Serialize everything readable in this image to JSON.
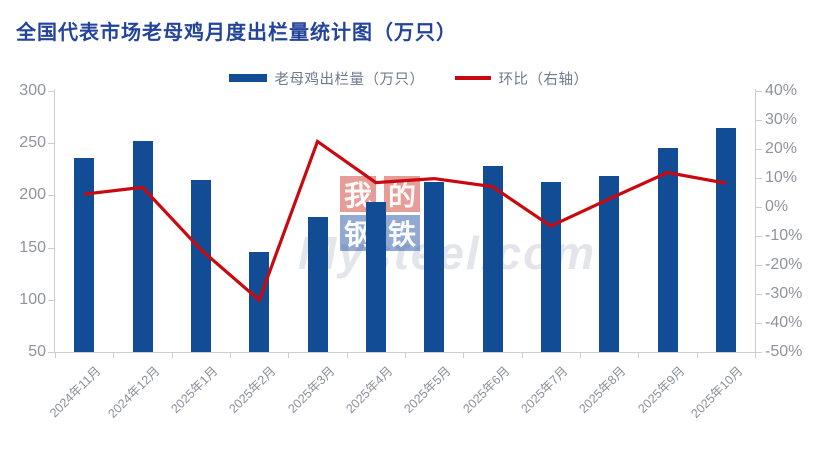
{
  "chart_data": {
    "type": "bar+line",
    "title": "全国代表市场老母鸡月度出栏量统计图（万只）",
    "categories": [
      "2024年11月",
      "2024年12月",
      "2025年1月",
      "2025年2月",
      "2025年3月",
      "2025年4月",
      "2025年5月",
      "2025年6月",
      "2025年7月",
      "2025年8月",
      "2025年9月",
      "2025年10月"
    ],
    "series": [
      {
        "name": "老母鸡出栏量（万只）",
        "type": "bar",
        "axis": "left",
        "color": "#114C95",
        "values": [
          236,
          252,
          215,
          146,
          179,
          194,
          213,
          228,
          213,
          219,
          245,
          265
        ]
      },
      {
        "name": "环比（右轴）",
        "type": "line",
        "axis": "right",
        "color": "#C9080F",
        "unit": "%",
        "values": [
          4.4,
          6.8,
          -14.7,
          -32.1,
          22.6,
          8.4,
          9.8,
          7.0,
          -6.6,
          2.8,
          11.9,
          8.2
        ]
      }
    ],
    "left_axis": {
      "min": 50,
      "max": 300,
      "step": 50,
      "tick_labels": [
        "300",
        "250",
        "200",
        "150",
        "100",
        "50"
      ]
    },
    "right_axis": {
      "min": -50,
      "max": 40,
      "step": 10,
      "tick_labels": [
        "40%",
        "30%",
        "20%",
        "10%",
        "0%",
        "-10%",
        "-20%",
        "-30%",
        "-40%",
        "-50%"
      ]
    },
    "legend_position": "top-center",
    "grid": false
  },
  "watermark": {
    "chars": [
      "我",
      "的",
      "钢",
      "铁"
    ],
    "domain": "Mysteel.com"
  },
  "colors": {
    "bar": "#114C95",
    "line": "#C9080F",
    "title": "#24449B",
    "axis_text": "#8F939E",
    "x_axis_text": "#8A8F99",
    "axis_line": "#C9CDD4",
    "legend_text": "#6E7A8E"
  }
}
